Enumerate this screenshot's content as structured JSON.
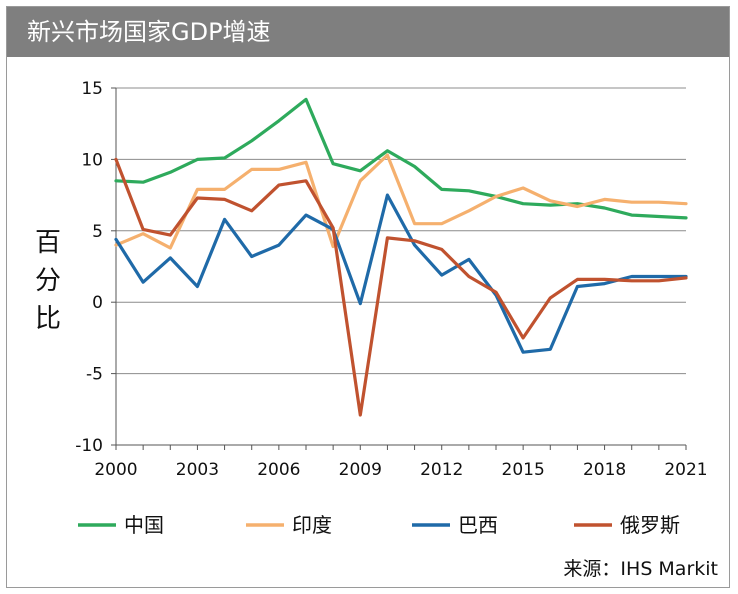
{
  "title": "新兴市场国家GDP增速",
  "source": "来源：IHS Markit",
  "chart_data": {
    "type": "line",
    "title": "新兴市场国家GDP增速",
    "ylabel": "百分比",
    "xlabel": "",
    "ylim": [
      -10,
      15
    ],
    "yticks": [
      -10,
      -5,
      0,
      5,
      10,
      15
    ],
    "xlim": [
      2000,
      2021
    ],
    "xticks": [
      2000,
      2003,
      2006,
      2009,
      2012,
      2015,
      2018,
      2021
    ],
    "grid": "horizontal",
    "legend_position": "bottom",
    "x": [
      2000,
      2001,
      2002,
      2003,
      2004,
      2005,
      2006,
      2007,
      2008,
      2009,
      2010,
      2011,
      2012,
      2013,
      2014,
      2015,
      2016,
      2017,
      2018,
      2019,
      2020,
      2021
    ],
    "series": [
      {
        "name": "中国",
        "color": "#2eaa5c",
        "values": [
          8.5,
          8.4,
          9.1,
          10.0,
          10.1,
          11.3,
          12.7,
          14.2,
          9.7,
          9.2,
          10.6,
          9.5,
          7.9,
          7.8,
          7.4,
          6.9,
          6.8,
          6.9,
          6.6,
          6.1,
          6.0,
          5.9
        ]
      },
      {
        "name": "印度",
        "color": "#f5b06e",
        "values": [
          4.0,
          4.8,
          3.8,
          7.9,
          7.9,
          9.3,
          9.3,
          9.8,
          3.9,
          8.5,
          10.3,
          5.5,
          5.5,
          6.4,
          7.4,
          8.0,
          7.1,
          6.7,
          7.2,
          7.0,
          7.0,
          6.9
        ]
      },
      {
        "name": "巴西",
        "color": "#1f6aa8",
        "values": [
          4.4,
          1.4,
          3.1,
          1.1,
          5.8,
          3.2,
          4.0,
          6.1,
          5.1,
          -0.1,
          7.5,
          4.0,
          1.9,
          3.0,
          0.5,
          -3.5,
          -3.3,
          1.1,
          1.3,
          1.8,
          1.8,
          1.8
        ]
      },
      {
        "name": "俄罗斯",
        "color": "#c0522f",
        "values": [
          10.0,
          5.1,
          4.7,
          7.3,
          7.2,
          6.4,
          8.2,
          8.5,
          5.2,
          -7.9,
          4.5,
          4.3,
          3.7,
          1.8,
          0.7,
          -2.5,
          0.3,
          1.6,
          1.6,
          1.5,
          1.5,
          1.7
        ]
      }
    ]
  }
}
